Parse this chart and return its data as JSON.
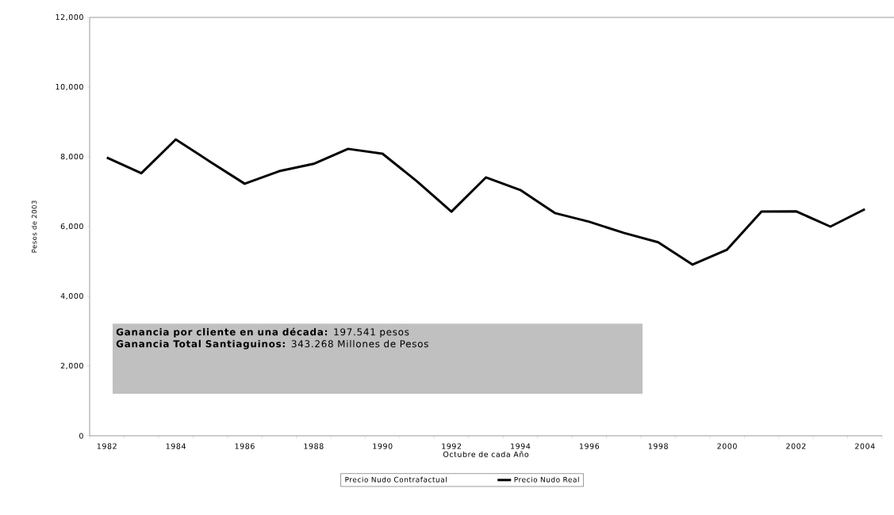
{
  "chart_data": {
    "type": "line",
    "xlabel": "Octubre de cada Año",
    "ylabel": "Pesos de 2003",
    "categories": [
      "1982",
      null,
      "1984",
      null,
      "1986",
      null,
      "1988",
      null,
      "1990",
      null,
      "1992",
      null,
      "1994",
      null,
      "1996",
      null,
      "1998",
      null,
      "2000",
      null,
      "2002",
      null,
      "2004"
    ],
    "series": [
      {
        "name": "Precio Nudo Contrafactual",
        "values": [
          null,
          null,
          null,
          null,
          null,
          null,
          null,
          null,
          null,
          null,
          null,
          null,
          null,
          null,
          null,
          null,
          null,
          null,
          null,
          null,
          null,
          null,
          null
        ]
      },
      {
        "name": "Precio Nudo Real",
        "color": "#000000",
        "values": [
          7980,
          7530,
          8500,
          7860,
          7230,
          7590,
          7800,
          8230,
          8090,
          7300,
          6430,
          7410,
          7050,
          6390,
          6140,
          5820,
          5550,
          4910,
          5340,
          6430,
          6440,
          6000,
          6500
        ]
      }
    ],
    "ylim": [
      0,
      12000
    ],
    "yticks": [
      0,
      {
        "value": 2000,
        "label": "2,000"
      },
      {
        "value": 4000,
        "label": "4,000"
      },
      {
        "value": 6000,
        "label": "6,000"
      },
      {
        "value": 8000,
        "label": "8,000"
      },
      {
        "value": 10000,
        "label": "10,000"
      },
      {
        "value": 12000,
        "label": "12,000"
      }
    ],
    "annotations": [
      "**Ganancia por cliente en una década:** 197.541 pesos",
      "**Ganancia Total Santiaguinos:** 343.268 Millones de Pesos"
    ],
    "legend": "bottom",
    "grid": false,
    "marker": "none",
    "line_style": "solid"
  }
}
